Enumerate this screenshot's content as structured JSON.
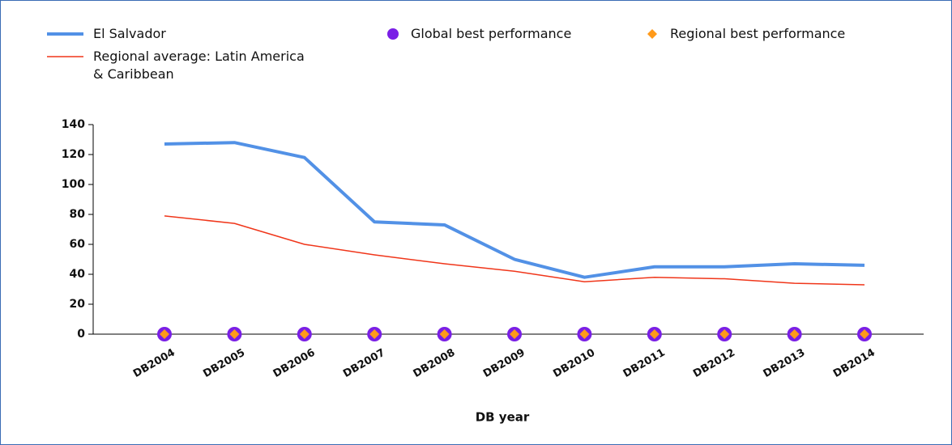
{
  "chart_data": {
    "type": "line",
    "x_label": "DB year",
    "categories": [
      "DB2004",
      "DB2005",
      "DB2006",
      "DB2007",
      "DB2008",
      "DB2009",
      "DB2010",
      "DB2011",
      "DB2012",
      "DB2013",
      "DB2014"
    ],
    "series": [
      {
        "name": "El Salvador",
        "color": "#5291e6",
        "line_width": 4,
        "values": [
          127,
          128,
          118,
          75,
          73,
          50,
          38,
          45,
          45,
          47,
          46
        ]
      },
      {
        "name": "Regional average: Latin America & Caribbean",
        "color": "#f0361a",
        "line_width": 1.5,
        "values": [
          79,
          74,
          60,
          53,
          47,
          42,
          35,
          38,
          37,
          34,
          33
        ]
      },
      {
        "name": "Global best performance",
        "color": "#7a1fe6",
        "marker": "circle",
        "values": [
          0,
          0,
          0,
          0,
          0,
          0,
          0,
          0,
          0,
          0,
          0
        ]
      },
      {
        "name": "Regional best performance",
        "color": "#ff9a1a",
        "marker": "diamond",
        "values": [
          0,
          0,
          0,
          0,
          0,
          0,
          0,
          0,
          0,
          0,
          0
        ]
      }
    ],
    "ylim": [
      0,
      140
    ],
    "yticks": [
      0,
      20,
      40,
      60,
      80,
      100,
      120,
      140
    ],
    "grid": false
  }
}
